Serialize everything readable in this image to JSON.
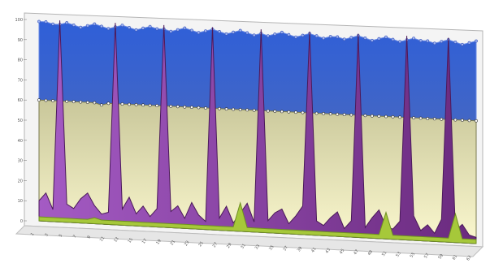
{
  "chart_data": {
    "type": "area",
    "three_d": true,
    "ylim": [
      0,
      100
    ],
    "y_ticks": [
      "0",
      "10",
      "20",
      "30",
      "40",
      "50",
      "60",
      "70",
      "80",
      "90",
      "100"
    ],
    "x_ticks": [
      "1",
      "3",
      "5",
      "7",
      "9",
      "11",
      "13",
      "15",
      "17",
      "19",
      "21",
      "23",
      "25",
      "27",
      "29",
      "31",
      "33",
      "35",
      "37",
      "39",
      "41",
      "43",
      "45",
      "47",
      "49",
      "51",
      "53",
      "55",
      "57",
      "59",
      "61",
      "63"
    ],
    "grid": false,
    "legend": "none",
    "series": [
      {
        "color": "#3b5fc4",
        "values": [
          99,
          99,
          98,
          98,
          99,
          98,
          97,
          98,
          99,
          98,
          97,
          98,
          99,
          98,
          97,
          98,
          99,
          98,
          98,
          97,
          98,
          99,
          98,
          97,
          98,
          99,
          98,
          97,
          98,
          99,
          98,
          97,
          98,
          97,
          98,
          99,
          98,
          97,
          98,
          99,
          98,
          97,
          98,
          98,
          97,
          98,
          99,
          98,
          97,
          98,
          99,
          98,
          97,
          98,
          99,
          98,
          98,
          97,
          98,
          99,
          98,
          97,
          98,
          99
        ]
      },
      {
        "color": "#e8e4a8",
        "values": [
          60,
          60,
          60,
          60,
          60,
          60,
          60,
          60,
          60,
          59,
          60,
          60,
          60,
          60,
          60,
          60,
          60,
          60,
          60,
          60,
          60,
          60,
          60,
          60,
          60,
          60,
          60,
          60,
          60,
          60,
          60,
          60,
          60,
          60,
          60,
          60,
          60,
          60,
          60,
          60,
          60,
          60,
          60,
          60,
          60,
          60,
          60,
          60,
          60,
          60,
          60,
          60,
          60,
          60,
          60,
          60,
          60,
          60,
          60,
          60,
          60,
          60,
          60,
          60
        ]
      },
      {
        "color": "#7a2e8a",
        "values": [
          10,
          14,
          6,
          100,
          9,
          7,
          12,
          15,
          9,
          5,
          6,
          100,
          8,
          14,
          6,
          10,
          5,
          9,
          100,
          8,
          11,
          5,
          13,
          7,
          4,
          100,
          6,
          12,
          4,
          9,
          14,
          5,
          100,
          6,
          10,
          12,
          5,
          9,
          14,
          100,
          7,
          5,
          9,
          12,
          4,
          8,
          100,
          5,
          10,
          14,
          6,
          5,
          9,
          100,
          12,
          5,
          8,
          4,
          11,
          100,
          6,
          9,
          4,
          3
        ]
      },
      {
        "color": "#a6c83a",
        "values": [
          2,
          2,
          2,
          2,
          2,
          2,
          2,
          2,
          3,
          2,
          2,
          2,
          2,
          2,
          2,
          2,
          2,
          2,
          2,
          2,
          2,
          2,
          2,
          2,
          2,
          2,
          2,
          2,
          2,
          14,
          2,
          2,
          2,
          2,
          2,
          2,
          2,
          2,
          2,
          2,
          2,
          2,
          2,
          2,
          2,
          2,
          2,
          2,
          2,
          2,
          13,
          2,
          2,
          2,
          2,
          2,
          2,
          2,
          2,
          2,
          14,
          2,
          2,
          2
        ]
      }
    ]
  }
}
